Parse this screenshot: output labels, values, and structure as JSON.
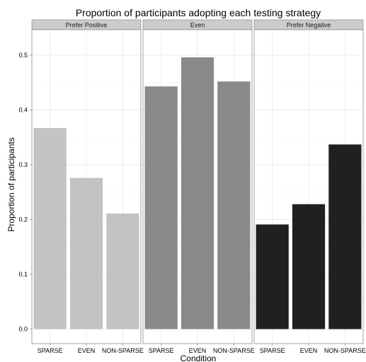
{
  "chart_data": {
    "type": "bar",
    "title": "Proportion of participants adopting each testing strategy",
    "xlabel": "Condition",
    "ylabel": "Proportion of participants",
    "ylim": [
      -0.0265,
      0.5465
    ],
    "yticks": [
      "0.0",
      "0.1",
      "0.2",
      "0.3",
      "0.4",
      "0.5"
    ],
    "grid": true,
    "categories": [
      "SPARSE",
      "EVEN",
      "NON-SPARSE"
    ],
    "facets": [
      {
        "name": "Prefer Positive",
        "color": "#c3c3c3",
        "values": [
          0.367,
          0.276,
          0.211
        ]
      },
      {
        "name": "Even",
        "color": "#8a8a8a",
        "values": [
          0.443,
          0.496,
          0.452
        ]
      },
      {
        "name": "Prefer Negative",
        "color": "#202020",
        "values": [
          0.191,
          0.228,
          0.337
        ]
      }
    ]
  }
}
